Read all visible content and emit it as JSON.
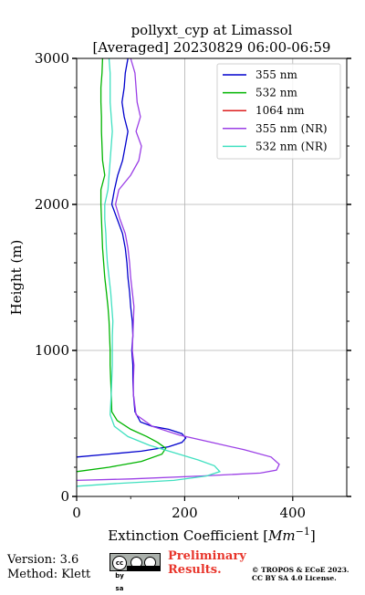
{
  "chart_data": {
    "type": "line",
    "title_line1": "pollyxt_cyp at Limassol",
    "title_line2": "[Averaged] 20230829 06:00-06:59",
    "xlabel": "Extinction Coefficient [",
    "xlabel_unit": "Mm",
    "xlabel_exp": "−1",
    "xlabel_close": "]",
    "ylabel": "Height (m)",
    "xlim": [
      0,
      500
    ],
    "ylim": [
      0,
      3000
    ],
    "xticks": [
      0,
      200,
      400
    ],
    "xtick_labels": [
      "0",
      "200",
      "400"
    ],
    "yticks": [
      0,
      1000,
      2000,
      3000
    ],
    "ytick_labels": [
      "0",
      "1000",
      "2000",
      "3000"
    ],
    "grid": true,
    "legend_position": "upper-right",
    "series": [
      {
        "name": "355 nm",
        "color": "#0000cd",
        "points": [
          [
            0,
            270
          ],
          [
            60,
            290
          ],
          [
            120,
            310
          ],
          [
            170,
            340
          ],
          [
            195,
            370
          ],
          [
            202,
            400
          ],
          [
            195,
            430
          ],
          [
            170,
            460
          ],
          [
            140,
            480
          ],
          [
            118,
            510
          ],
          [
            108,
            580
          ],
          [
            105,
            700
          ],
          [
            104,
            800
          ],
          [
            104,
            900
          ],
          [
            102,
            1000
          ],
          [
            104,
            1100
          ],
          [
            103,
            1200
          ],
          [
            100,
            1300
          ],
          [
            98,
            1400
          ],
          [
            95,
            1500
          ],
          [
            93,
            1600
          ],
          [
            90,
            1700
          ],
          [
            85,
            1800
          ],
          [
            75,
            1900
          ],
          [
            65,
            2000
          ],
          [
            70,
            2100
          ],
          [
            76,
            2200
          ],
          [
            85,
            2300
          ],
          [
            90,
            2400
          ],
          [
            95,
            2500
          ],
          [
            88,
            2600
          ],
          [
            84,
            2700
          ],
          [
            88,
            2800
          ],
          [
            90,
            2900
          ],
          [
            95,
            3000
          ]
        ]
      },
      {
        "name": "532 nm",
        "color": "#00b400",
        "points": [
          [
            0,
            170
          ],
          [
            60,
            200
          ],
          [
            120,
            240
          ],
          [
            158,
            290
          ],
          [
            165,
            330
          ],
          [
            150,
            370
          ],
          [
            130,
            410
          ],
          [
            100,
            460
          ],
          [
            75,
            520
          ],
          [
            65,
            580
          ],
          [
            64,
            700
          ],
          [
            63,
            800
          ],
          [
            62,
            900
          ],
          [
            62,
            1000
          ],
          [
            61,
            1100
          ],
          [
            60,
            1200
          ],
          [
            58,
            1300
          ],
          [
            55,
            1400
          ],
          [
            52,
            1500
          ],
          [
            50,
            1600
          ],
          [
            48,
            1700
          ],
          [
            47,
            1800
          ],
          [
            46,
            1900
          ],
          [
            45,
            2000
          ],
          [
            45,
            2100
          ],
          [
            52,
            2200
          ],
          [
            48,
            2300
          ],
          [
            47,
            2400
          ],
          [
            46,
            2500
          ],
          [
            46,
            2600
          ],
          [
            45,
            2700
          ],
          [
            45,
            2800
          ],
          [
            47,
            2900
          ],
          [
            48,
            3000
          ]
        ]
      },
      {
        "name": "1064 nm",
        "color": "#dc1e1e",
        "points": []
      },
      {
        "name": "355 nm (NR)",
        "color": "#9b3fe6",
        "points": [
          [
            0,
            110
          ],
          [
            100,
            120
          ],
          [
            230,
            140
          ],
          [
            340,
            160
          ],
          [
            370,
            180
          ],
          [
            375,
            220
          ],
          [
            360,
            270
          ],
          [
            310,
            320
          ],
          [
            250,
            370
          ],
          [
            190,
            420
          ],
          [
            140,
            480
          ],
          [
            110,
            560
          ],
          [
            105,
            700
          ],
          [
            105,
            800
          ],
          [
            106,
            900
          ],
          [
            103,
            1000
          ],
          [
            104,
            1100
          ],
          [
            105,
            1200
          ],
          [
            106,
            1300
          ],
          [
            103,
            1400
          ],
          [
            100,
            1500
          ],
          [
            98,
            1600
          ],
          [
            95,
            1700
          ],
          [
            90,
            1800
          ],
          [
            80,
            1900
          ],
          [
            72,
            2000
          ],
          [
            78,
            2100
          ],
          [
            100,
            2200
          ],
          [
            115,
            2300
          ],
          [
            120,
            2400
          ],
          [
            110,
            2500
          ],
          [
            118,
            2600
          ],
          [
            112,
            2700
          ],
          [
            110,
            2800
          ],
          [
            108,
            2900
          ],
          [
            100,
            3000
          ]
        ]
      },
      {
        "name": "532 nm (NR)",
        "color": "#40e0c0",
        "points": [
          [
            0,
            70
          ],
          [
            80,
            90
          ],
          [
            180,
            110
          ],
          [
            240,
            140
          ],
          [
            265,
            170
          ],
          [
            255,
            210
          ],
          [
            225,
            250
          ],
          [
            180,
            300
          ],
          [
            135,
            350
          ],
          [
            95,
            410
          ],
          [
            70,
            480
          ],
          [
            62,
            560
          ],
          [
            64,
            700
          ],
          [
            65,
            800
          ],
          [
            66,
            900
          ],
          [
            66,
            1000
          ],
          [
            66,
            1100
          ],
          [
            67,
            1200
          ],
          [
            65,
            1300
          ],
          [
            63,
            1400
          ],
          [
            60,
            1500
          ],
          [
            57,
            1600
          ],
          [
            55,
            1700
          ],
          [
            54,
            1800
          ],
          [
            52,
            1900
          ],
          [
            52,
            2000
          ],
          [
            58,
            2100
          ],
          [
            60,
            2200
          ],
          [
            62,
            2300
          ],
          [
            64,
            2400
          ],
          [
            66,
            2500
          ],
          [
            64,
            2600
          ],
          [
            62,
            2700
          ],
          [
            62,
            2800
          ],
          [
            62,
            2900
          ],
          [
            60,
            3000
          ]
        ]
      }
    ]
  },
  "footer": {
    "version": "Version: 3.6",
    "method": "Method: Klett",
    "license_badge": "cc by sa",
    "preliminary_line1": "Preliminary",
    "preliminary_line2": "Results.",
    "copyright_line1": "© TROPOS & ECoE 2023.",
    "copyright_line2": "CC BY SA 4.0 License."
  }
}
